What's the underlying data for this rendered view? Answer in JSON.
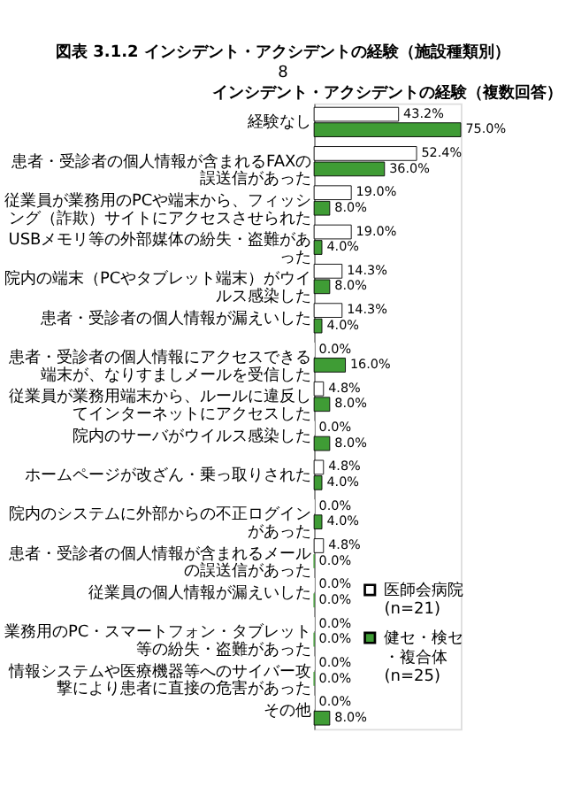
{
  "chart_data": {
    "type": "bar",
    "orientation": "horizontal",
    "title": "図表 3.1.2 インシデント・アクシデントの経験（施設種類別）",
    "subtitle": "インシデント・アクシデントの経験（複数回答）",
    "categories": [
      "経験なし",
      "患者・受診者の個人情報が含まれるFAXの誤送信があった",
      "従業員が業務用のPCや端末から、フィッシング（詐欺）サイトにアクセスさせられた",
      "USBメモリ等の外部媒体の紛失・盗難があった",
      "院内の端末（PCやタブレット端末）がウイルス感染した",
      "患者・受診者の個人情報が漏えいした",
      "患者・受診者の個人情報にアクセスできる端末が、なりすましメールを受信した",
      "従業員が業務用端末から、ルールに違反してインターネットにアクセスした",
      "院内のサーバがウイルス感染した",
      "ホームページが改ざん・乗っ取りされた",
      "院内のシステムに外部からの不正ログインがあった",
      "患者・受診者の個人情報が含まれるメールの誤送信があった",
      "従業員の個人情報が漏えいした",
      "業務用のPC・スマートフォン・タブレット等の紛失・盗難があった",
      "情報システムや医療機器等へのサイバー攻撃により患者に直接の危害があった",
      "その他"
    ],
    "series": [
      {
        "name": "医師会病院(n=21)",
        "color": "#ffffff",
        "values": [
          43.2,
          52.4,
          19.0,
          19.0,
          14.3,
          14.3,
          0.0,
          4.8,
          0.0,
          4.8,
          0.0,
          4.8,
          0.0,
          0.0,
          0.0,
          0.0
        ],
        "value_labels": [
          "43.2%",
          "52.4%",
          "19.0%",
          "19.0%",
          "14.3%",
          "14.3%",
          "0.0%",
          "4.8%",
          "0.0%",
          "4.8%",
          "0.0%",
          "4.8%",
          "0.0%",
          "0.0%",
          "0.0%",
          "0.0%"
        ]
      },
      {
        "name": "健セ・検セ・複合体(n=25)",
        "color": "#3f9c35",
        "values": [
          75.0,
          36.0,
          8.0,
          4.0,
          8.0,
          4.0,
          16.0,
          8.0,
          8.0,
          4.0,
          4.0,
          0.0,
          0.0,
          0.0,
          0.0,
          8.0
        ],
        "value_labels": [
          "75.0%",
          "36.0%",
          "8.0%",
          "4.0%",
          "8.0%",
          "4.0%",
          "16.0%",
          "8.0%",
          "8.0%",
          "4.0%",
          "4.0%",
          "0.0%",
          "0.0%",
          "0.0%",
          "0.0%",
          "8.0%"
        ]
      }
    ],
    "data_labels": true,
    "legend": "right",
    "grid": false,
    "annotations": [
      "8"
    ]
  }
}
